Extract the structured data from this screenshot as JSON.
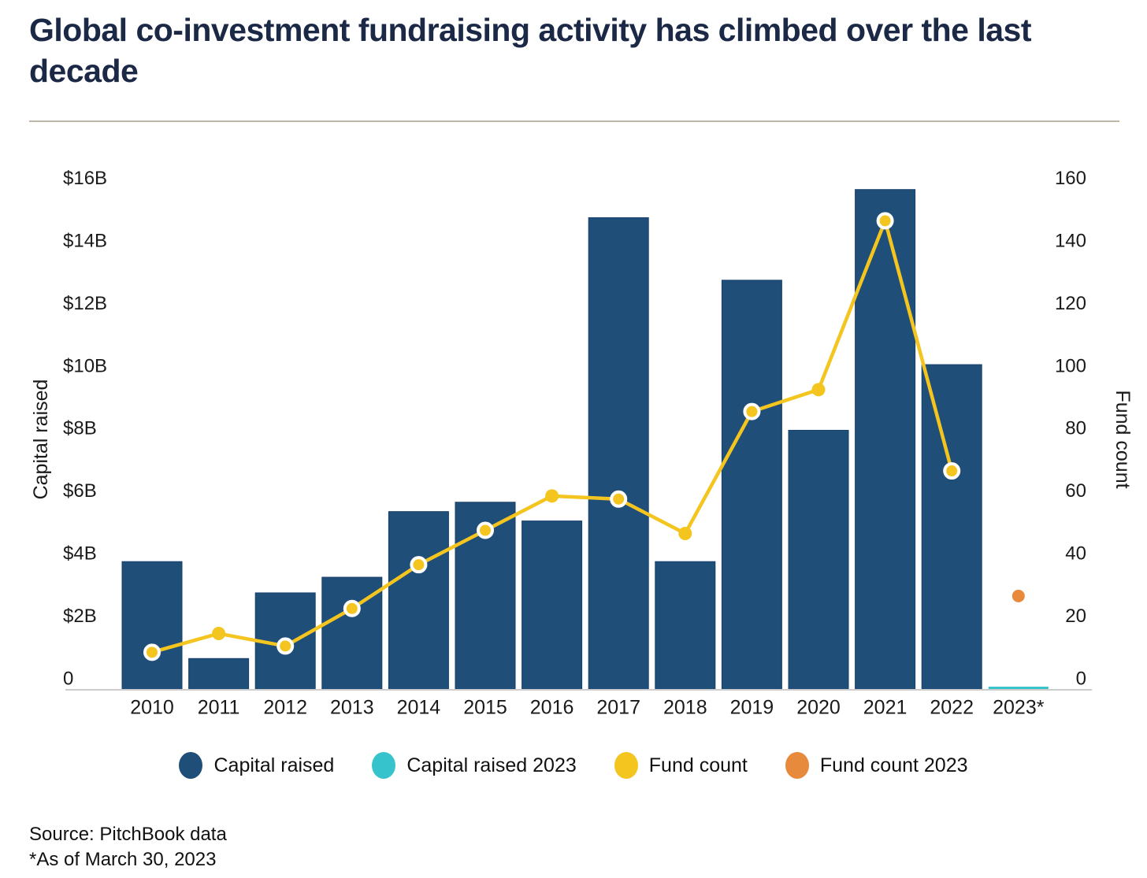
{
  "title": "Global co-investment fundraising activity has climbed over the last decade",
  "y_axis_left": {
    "label": "Capital raised",
    "ticks": [
      "$16B",
      "$14B",
      "$12B",
      "$10B",
      "$8B",
      "$6B",
      "$4B",
      "$2B",
      "0"
    ]
  },
  "y_axis_right": {
    "label": "Fund count",
    "ticks": [
      "160",
      "140",
      "120",
      "100",
      "80",
      "60",
      "40",
      "20",
      "0"
    ]
  },
  "legend": [
    {
      "label": "Capital raised",
      "color": "#1F4E79"
    },
    {
      "label": "Capital raised 2023",
      "color": "#36C3CC"
    },
    {
      "label": "Fund count",
      "color": "#F4C41F"
    },
    {
      "label": "Fund count 2023",
      "color": "#E78A3B"
    }
  ],
  "footer": {
    "source": "Source: PitchBook data",
    "note": "*As of March 30, 2023"
  },
  "colors": {
    "bar_navy": "#1F4E79",
    "bar_navy_edge": "#16406B",
    "bar_teal": "#36C3CC",
    "line_yellow": "#F4C41F",
    "dot_ring": "#FFFFFF",
    "point_orange": "#E78A3B",
    "axis_line": "#CCCCCC",
    "title_navy": "#1B2846",
    "divider": "#BDB7A8"
  },
  "chart_data": {
    "type": "bar",
    "subtype": "bar+line combo, dual axis",
    "categories": [
      "2010",
      "2011",
      "2012",
      "2013",
      "2014",
      "2015",
      "2016",
      "2017",
      "2018",
      "2019",
      "2020",
      "2021",
      "2022",
      "2023*"
    ],
    "series": [
      {
        "name": "Capital raised",
        "type": "bar",
        "axis": "left",
        "unit": "USD billions",
        "color": "#1F4E79",
        "values": [
          4.1,
          1.0,
          3.1,
          3.6,
          5.7,
          6.0,
          5.4,
          15.1,
          4.1,
          13.1,
          8.3,
          16.0,
          10.4,
          null
        ]
      },
      {
        "name": "Capital raised 2023",
        "type": "bar",
        "axis": "left",
        "unit": "USD billions",
        "color": "#36C3CC",
        "values": [
          null,
          null,
          null,
          null,
          null,
          null,
          null,
          null,
          null,
          null,
          null,
          null,
          null,
          0.1
        ]
      },
      {
        "name": "Fund count",
        "type": "line",
        "axis": "right",
        "color": "#F4C41F",
        "values": [
          12,
          18,
          14,
          26,
          40,
          51,
          62,
          61,
          50,
          89,
          96,
          150,
          70,
          null
        ]
      },
      {
        "name": "Fund count 2023",
        "type": "scatter",
        "axis": "right",
        "color": "#E78A3B",
        "values": [
          null,
          null,
          null,
          null,
          null,
          null,
          null,
          null,
          null,
          null,
          null,
          null,
          null,
          30
        ]
      }
    ],
    "left_axis": {
      "label": "Capital raised",
      "min": 0,
      "max": 16,
      "tick_step": 2,
      "tick_format": "$nB"
    },
    "right_axis": {
      "label": "Fund count",
      "min": 0,
      "max": 160,
      "tick_step": 20
    },
    "grid": false,
    "legend_position": "bottom",
    "title": "Global co-investment fundraising activity has climbed over the last decade"
  }
}
